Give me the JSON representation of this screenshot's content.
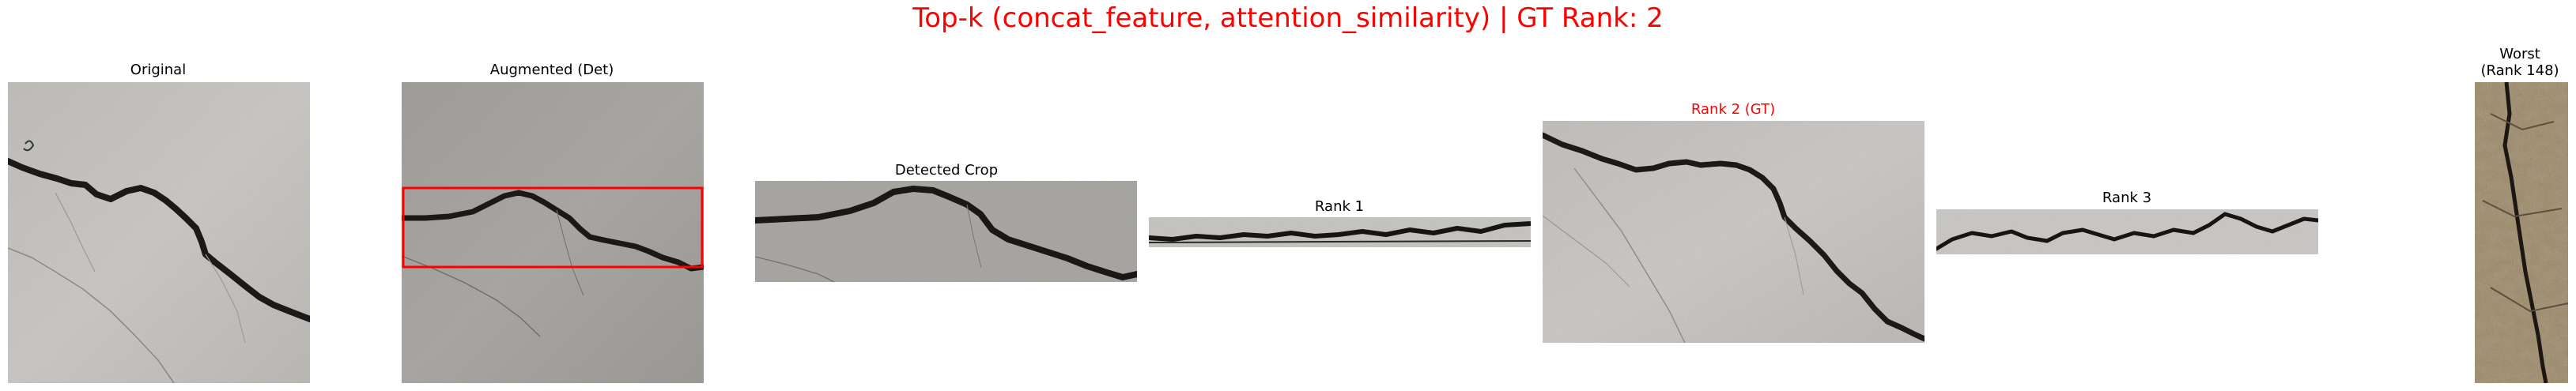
{
  "figure": {
    "title": "Top-k (concat_feature, attention_similarity) | GT Rank: 2",
    "title_color": "#ff0000",
    "highlight_color": "#ff0000"
  },
  "panels": {
    "original": {
      "title": "Original"
    },
    "augmented": {
      "title": "Augmented (Det)"
    },
    "detected_crop": {
      "title": "Detected Crop"
    },
    "rank1": {
      "title": "Rank 1"
    },
    "rank2": {
      "title": "Rank 2 (GT)"
    },
    "rank3": {
      "title": "Rank 3"
    },
    "worst": {
      "title_line1": "Worst",
      "title_line2": "(Rank 148)"
    }
  },
  "icons": {
    "crack_image": "crack-photo",
    "stone_image": "stone-photo",
    "detection_box": "bounding-box"
  }
}
